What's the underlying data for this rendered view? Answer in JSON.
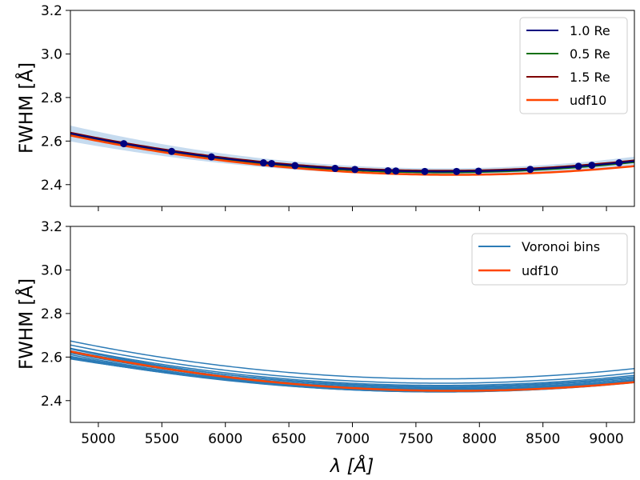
{
  "chart_data": [
    {
      "type": "line",
      "panel": "top",
      "ylabel": "FWHM [Å]",
      "xlabel": "",
      "xlim": [
        4780,
        9220
      ],
      "ylim": [
        2.3,
        3.2
      ],
      "xticks": [
        5000,
        5500,
        6000,
        6500,
        7000,
        7500,
        8000,
        8500,
        9000
      ],
      "yticks": [
        2.4,
        2.6,
        2.8,
        3.0,
        3.2
      ],
      "ytick_labels": [
        "2.4",
        "2.6",
        "2.8",
        "3.0",
        "3.2"
      ],
      "show_xtick_labels": false,
      "legend_position": "top-right",
      "band": {
        "name": "uncertainty band",
        "color": "#c6dbef",
        "center": {
          "a": 2.46,
          "b": 7700,
          "c": 2.05e-08
        },
        "halfwidth": {
          "base": 0.015,
          "k": 2.5e-09
        }
      },
      "series": [
        {
          "name": "1.0 Re",
          "color": "#00007f",
          "width": 2,
          "a": 2.46,
          "b": 7700,
          "c": 2.05e-08,
          "show_markers": true,
          "markers_x": [
            5200,
            5577,
            5890,
            6300,
            6364,
            6548,
            6864,
            7020,
            7280,
            7342,
            7570,
            7820,
            7993,
            8400,
            8780,
            8885,
            9100
          ]
        },
        {
          "name": "0.5 Re",
          "color": "#107010",
          "width": 1.6,
          "a": 2.455,
          "b": 7700,
          "c": 2.05e-08
        },
        {
          "name": "1.5 Re",
          "color": "#7f0000",
          "width": 1.6,
          "a": 2.465,
          "b": 7700,
          "c": 2.05e-08
        },
        {
          "name": "udf10",
          "color": "#ff4500",
          "width": 2.5,
          "a": 2.445,
          "b": 7800,
          "c": 1.98e-08
        }
      ]
    },
    {
      "type": "line",
      "panel": "bottom",
      "ylabel": "FWHM [Å]",
      "xlabel": "λ [Å]",
      "xlim": [
        4780,
        9220
      ],
      "ylim": [
        2.3,
        3.2
      ],
      "xticks": [
        5000,
        5500,
        6000,
        6500,
        7000,
        7500,
        8000,
        8500,
        9000
      ],
      "xtick_labels": [
        "5000",
        "5500",
        "6000",
        "6500",
        "7000",
        "7500",
        "8000",
        "8500",
        "9000"
      ],
      "yticks": [
        2.4,
        2.6,
        2.8,
        3.0,
        3.2
      ],
      "ytick_labels": [
        "2.4",
        "2.6",
        "2.8",
        "3.0",
        "3.2"
      ],
      "show_xtick_labels": true,
      "legend_position": "top-right",
      "legend": [
        {
          "name": "Voronoi bins",
          "color": "#2c7bb6"
        },
        {
          "name": "udf10",
          "color": "#ff4500"
        }
      ],
      "voronoi_bins": {
        "color": "#2c7bb6",
        "width": 1.5,
        "curves": [
          {
            "a": 2.5,
            "b": 7700,
            "c": 2.04e-08
          },
          {
            "a": 2.48,
            "b": 7700,
            "c": 2.06e-08
          },
          {
            "a": 2.47,
            "b": 7700,
            "c": 2e-08
          },
          {
            "a": 2.46,
            "b": 7700,
            "c": 2.08e-08
          },
          {
            "a": 2.455,
            "b": 7700,
            "c": 2.02e-08
          },
          {
            "a": 2.45,
            "b": 7700,
            "c": 1.98e-08
          },
          {
            "a": 2.445,
            "b": 7700,
            "c": 2.1e-08
          },
          {
            "a": 2.44,
            "b": 7700,
            "c": 1.9e-08
          },
          {
            "a": 2.44,
            "b": 7700,
            "c": 1.85e-08
          },
          {
            "a": 2.445,
            "b": 7700,
            "c": 1.75e-08
          },
          {
            "a": 2.45,
            "b": 7700,
            "c": 1.8e-08
          },
          {
            "a": 2.45,
            "b": 7700,
            "c": 1.68e-08
          },
          {
            "a": 2.455,
            "b": 7700,
            "c": 1.6e-08
          },
          {
            "a": 2.445,
            "b": 7700,
            "c": 1.95e-08
          },
          {
            "a": 2.465,
            "b": 7700,
            "c": 1.92e-08
          }
        ]
      },
      "series": [
        {
          "name": "udf10",
          "color": "#ff4500",
          "width": 2.5,
          "a": 2.445,
          "b": 7800,
          "c": 1.98e-08
        }
      ]
    }
  ]
}
